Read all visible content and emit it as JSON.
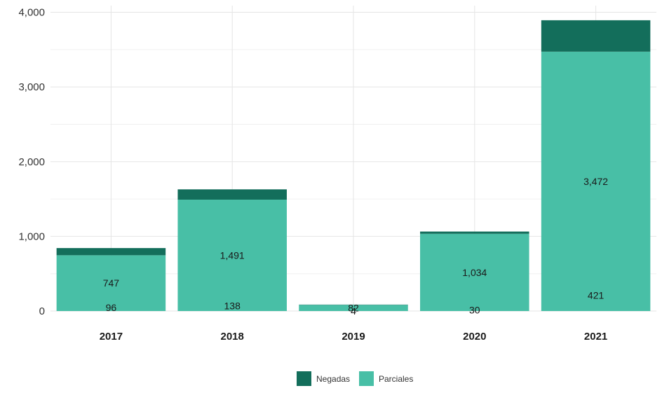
{
  "chart_data": {
    "type": "bar",
    "stacked": true,
    "title": "",
    "xlabel": "",
    "ylabel": "",
    "categories": [
      "2017",
      "2018",
      "2019",
      "2020",
      "2021"
    ],
    "series": [
      {
        "name": "Parciales",
        "color": "#48bfa6",
        "values": [
          747,
          1491,
          82,
          1034,
          3472
        ],
        "labels": [
          "747",
          "1,491",
          "82",
          "1,034",
          "3,472"
        ]
      },
      {
        "name": "Negadas",
        "color": "#136e5b",
        "values": [
          96,
          138,
          4,
          30,
          421
        ],
        "labels": [
          "96",
          "138",
          "4",
          "30",
          "421"
        ]
      }
    ],
    "ylim": [
      0,
      4000
    ],
    "yticks": [
      0,
      1000,
      2000,
      3000,
      4000
    ],
    "ytick_labels": [
      "0",
      "1,000",
      "2,000",
      "3,000",
      "4,000"
    ],
    "grid": true,
    "legend_position": "bottom"
  }
}
